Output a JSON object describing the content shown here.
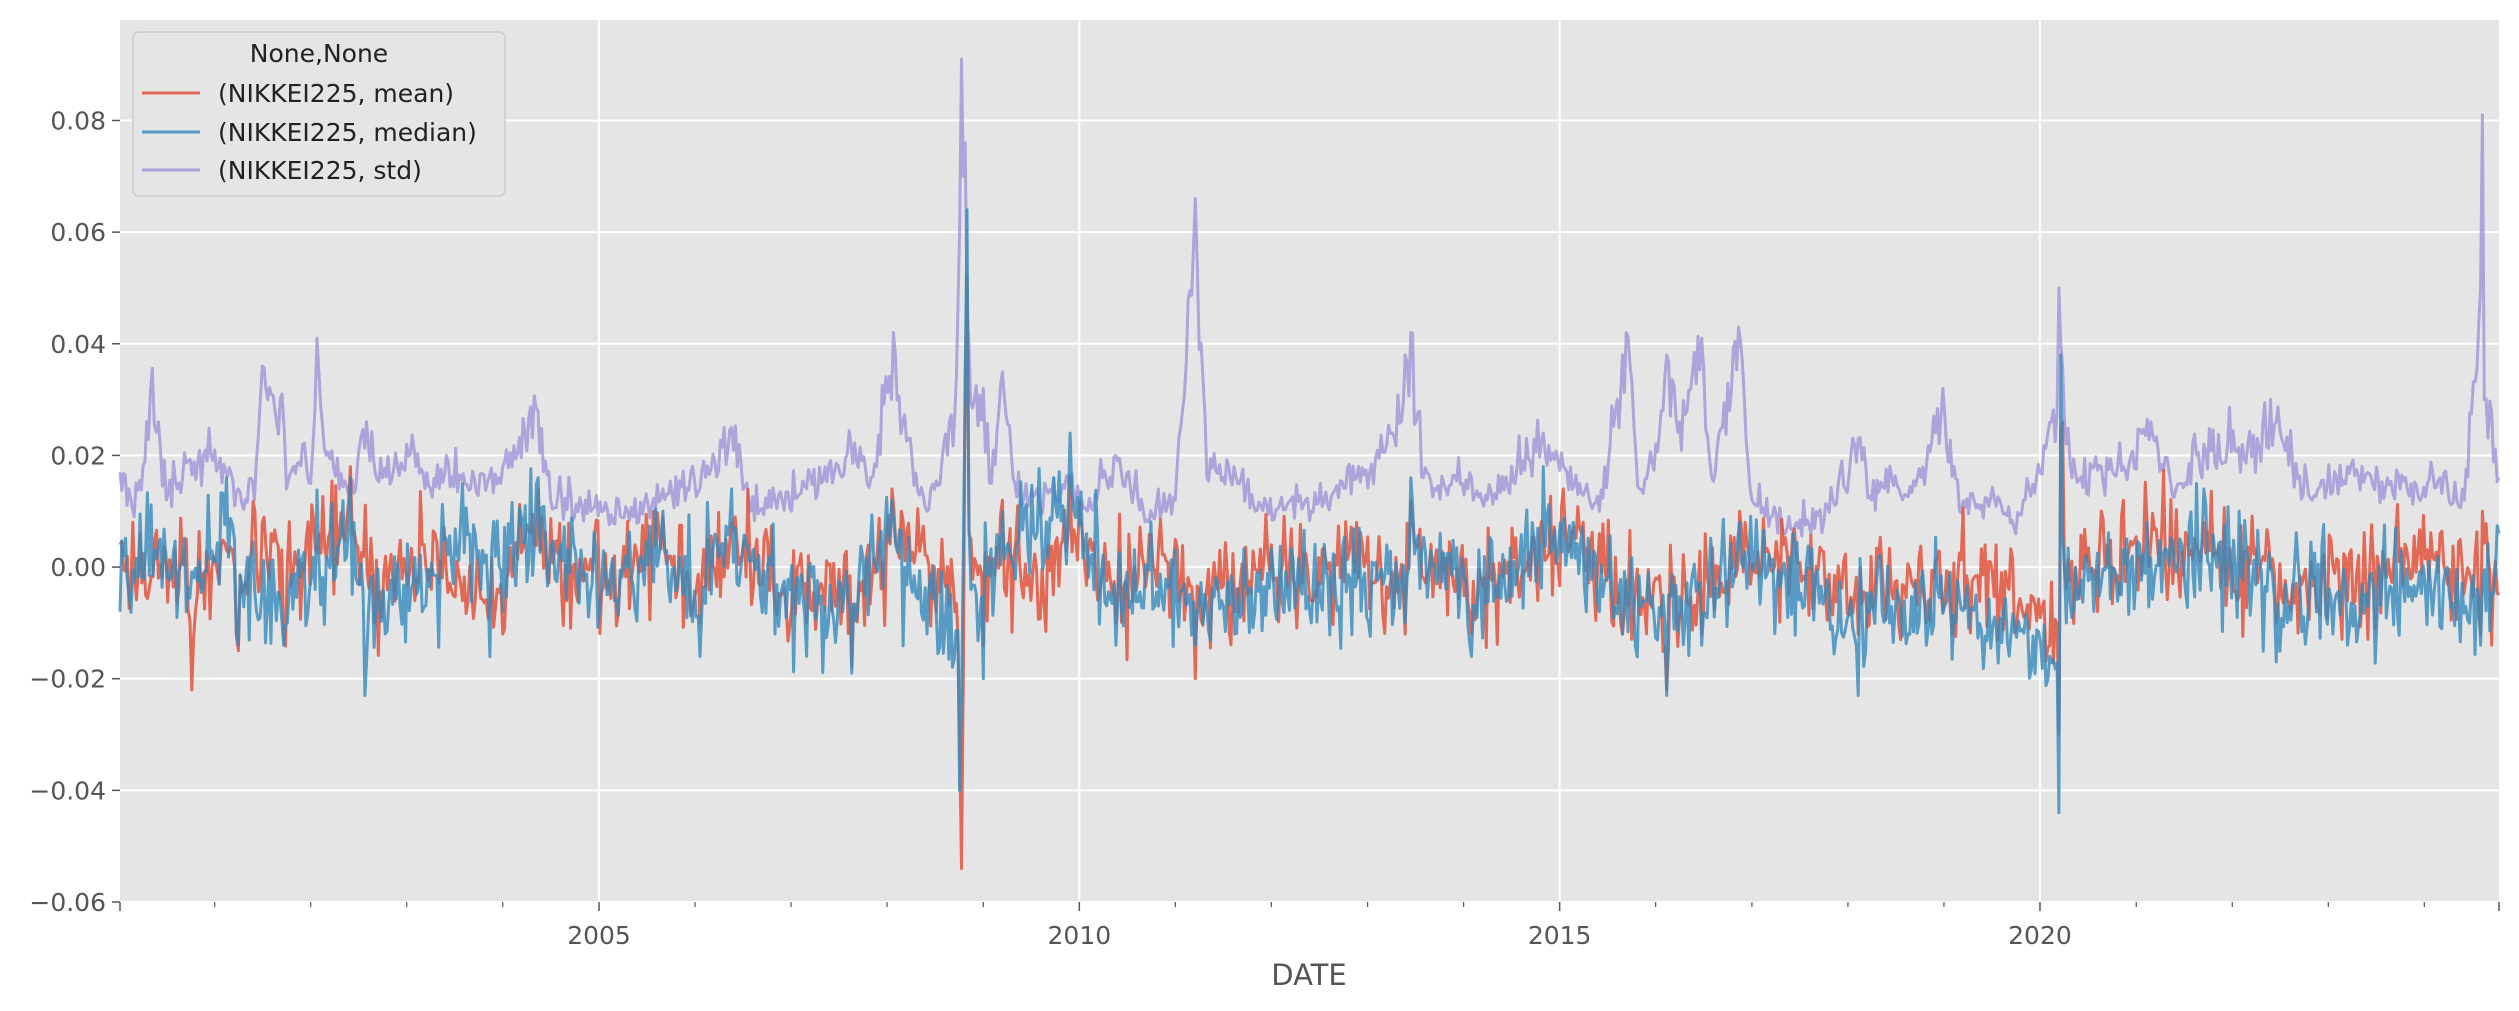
{
  "chart_data": {
    "type": "line",
    "title": "",
    "xlabel": "DATE",
    "ylabel": "",
    "xlim": [
      "2000-01-07",
      "2024-10-11"
    ],
    "ylim": [
      -0.06,
      0.098
    ],
    "grid": true,
    "legend": {
      "title": "None,None",
      "position": "top-left"
    },
    "x_tick_labels": [
      "2005",
      "2010",
      "2015",
      "2020"
    ],
    "y_tick_labels": [
      "−0.06",
      "−0.04",
      "−0.02",
      "0.00",
      "0.02",
      "0.04",
      "0.06",
      "0.08"
    ],
    "colors": {
      "background": "#e5e5e5",
      "grid": "#ffffff",
      "mean": "#e24a33",
      "median": "#348abd",
      "std": "#988ed5"
    },
    "series": [
      {
        "name": "(NIKKEI225, mean)",
        "key": "mean",
        "points": [
          [
            "2000-01-07",
            0.004
          ],
          [
            "2000-06-01",
            -0.002
          ],
          [
            "2000-09-15",
            0.005
          ],
          [
            "2000-10-06",
            -0.022
          ],
          [
            "2001-02-15",
            0.003
          ],
          [
            "2001-04-01",
            -0.015
          ],
          [
            "2001-07-01",
            0.008
          ],
          [
            "2001-09-20",
            -0.012
          ],
          [
            "2001-12-15",
            0.005
          ],
          [
            "2002-06-01",
            0.018
          ],
          [
            "2002-09-01",
            -0.01
          ],
          [
            "2003-03-01",
            0.004
          ],
          [
            "2003-08-01",
            -0.006
          ],
          [
            "2004-01-01",
            -0.012
          ],
          [
            "2004-05-15",
            0.014
          ],
          [
            "2004-09-01",
            -0.006
          ],
          [
            "2005-03-01",
            0.002
          ],
          [
            "2005-09-01",
            0.009
          ],
          [
            "2006-01-20",
            -0.01
          ],
          [
            "2006-05-20",
            0.008
          ],
          [
            "2006-11-01",
            -0.007
          ],
          [
            "2007-03-01",
            -0.01
          ],
          [
            "2007-08-20",
            -0.018
          ],
          [
            "2008-01-20",
            0.014
          ],
          [
            "2008-06-01",
            0.002
          ],
          [
            "2008-09-15",
            -0.008
          ],
          [
            "2008-10-03",
            -0.03
          ],
          [
            "2008-10-10",
            -0.054
          ],
          [
            "2008-10-17",
            -0.02
          ],
          [
            "2008-10-24",
            0.035
          ],
          [
            "2008-10-31",
            0.052
          ],
          [
            "2008-11-15",
            0.005
          ],
          [
            "2009-01-01",
            -0.014
          ],
          [
            "2009-03-15",
            0.012
          ],
          [
            "2009-07-01",
            -0.006
          ],
          [
            "2009-11-27",
            0.016
          ],
          [
            "2010-05-20",
            -0.01
          ],
          [
            "2011-01-01",
            0.005
          ],
          [
            "2011-03-18",
            -0.02
          ],
          [
            "2011-08-15",
            -0.008
          ],
          [
            "2012-01-01",
            0.004
          ],
          [
            "2012-06-01",
            -0.006
          ],
          [
            "2012-11-20",
            0.008
          ],
          [
            "2013-05-24",
            -0.012
          ],
          [
            "2013-06-14",
            0.012
          ],
          [
            "2014-01-31",
            -0.012
          ],
          [
            "2014-10-31",
            0.006
          ],
          [
            "2015-01-15",
            0.014
          ],
          [
            "2015-06-01",
            0.006
          ],
          [
            "2015-08-28",
            -0.012
          ],
          [
            "2016-02-12",
            -0.022
          ],
          [
            "2016-06-24",
            -0.012
          ],
          [
            "2016-11-15",
            0.01
          ],
          [
            "2017-05-01",
            0.004
          ],
          [
            "2018-02-09",
            -0.012
          ],
          [
            "2018-10-26",
            -0.01
          ],
          [
            "2018-12-28",
            -0.008
          ],
          [
            "2019-08-01",
            -0.006
          ],
          [
            "2020-03-13",
            -0.03
          ],
          [
            "2020-03-20",
            0.024
          ],
          [
            "2020-03-27",
            0.026
          ],
          [
            "2020-04-10",
            -0.004
          ],
          [
            "2020-11-13",
            0.012
          ],
          [
            "2021-09-15",
            0.008
          ],
          [
            "2022-06-17",
            -0.01
          ],
          [
            "2023-03-15",
            -0.006
          ],
          [
            "2024-03-01",
            0.006
          ],
          [
            "2024-08-02",
            -0.012
          ],
          [
            "2024-08-09",
            0.01
          ],
          [
            "2024-10-11",
            -0.005
          ]
        ]
      },
      {
        "name": "(NIKKEI225, median)",
        "key": "median",
        "points": [
          [
            "2000-01-07",
            -0.008
          ],
          [
            "2000-06-01",
            0.004
          ],
          [
            "2000-09-15",
            -0.008
          ],
          [
            "2001-02-15",
            0.016
          ],
          [
            "2001-04-01",
            -0.014
          ],
          [
            "2001-09-20",
            -0.014
          ],
          [
            "2002-06-01",
            0.016
          ],
          [
            "2002-07-26",
            -0.023
          ],
          [
            "2003-03-01",
            -0.008
          ],
          [
            "2003-08-01",
            0.015
          ],
          [
            "2004-01-01",
            -0.008
          ],
          [
            "2004-05-15",
            0.016
          ],
          [
            "2005-03-01",
            -0.006
          ],
          [
            "2005-09-01",
            0.01
          ],
          [
            "2006-01-20",
            -0.016
          ],
          [
            "2006-05-20",
            0.014
          ],
          [
            "2006-11-01",
            -0.012
          ],
          [
            "2007-03-01",
            -0.016
          ],
          [
            "2007-08-20",
            -0.019
          ],
          [
            "2008-01-20",
            0.012
          ],
          [
            "2008-06-01",
            -0.012
          ],
          [
            "2008-10-03",
            -0.04
          ],
          [
            "2008-10-10",
            -0.024
          ],
          [
            "2008-10-24",
            0.032
          ],
          [
            "2008-10-31",
            0.064
          ],
          [
            "2008-11-15",
            -0.004
          ],
          [
            "2009-01-01",
            -0.02
          ],
          [
            "2009-03-15",
            0.01
          ],
          [
            "2009-11-27",
            0.024
          ],
          [
            "2010-05-20",
            -0.014
          ],
          [
            "2011-03-18",
            -0.014
          ],
          [
            "2011-08-15",
            -0.012
          ],
          [
            "2012-06-01",
            -0.01
          ],
          [
            "2013-05-24",
            -0.01
          ],
          [
            "2013-06-14",
            0.016
          ],
          [
            "2014-01-31",
            -0.016
          ],
          [
            "2014-10-31",
            0.018
          ],
          [
            "2015-06-01",
            -0.008
          ],
          [
            "2015-08-28",
            -0.012
          ],
          [
            "2016-02-12",
            -0.023
          ],
          [
            "2016-06-24",
            -0.014
          ],
          [
            "2016-11-15",
            0.008
          ],
          [
            "2018-02-09",
            -0.023
          ],
          [
            "2018-10-26",
            -0.014
          ],
          [
            "2020-03-13",
            -0.044
          ],
          [
            "2020-03-20",
            0.038
          ],
          [
            "2020-04-10",
            -0.01
          ],
          [
            "2021-09-15",
            0.014
          ],
          [
            "2022-06-17",
            -0.017
          ],
          [
            "2023-03-15",
            -0.014
          ],
          [
            "2024-08-02",
            -0.014
          ],
          [
            "2024-10-11",
            0.006
          ]
        ]
      },
      {
        "name": "(NIKKEI225, std)",
        "key": "std",
        "points": [
          [
            "2000-01-07",
            0.017
          ],
          [
            "2000-03-01",
            0.009
          ],
          [
            "2000-05-01",
            0.031
          ],
          [
            "2000-06-01",
            0.026
          ],
          [
            "2000-07-01",
            0.012
          ],
          [
            "2000-09-01",
            0.016
          ],
          [
            "2001-01-01",
            0.021
          ],
          [
            "2001-04-01",
            0.014
          ],
          [
            "2001-06-01",
            0.012
          ],
          [
            "2001-07-01",
            0.036
          ],
          [
            "2001-09-14",
            0.031
          ],
          [
            "2001-10-01",
            0.014
          ],
          [
            "2001-12-01",
            0.022
          ],
          [
            "2002-01-01",
            0.015
          ],
          [
            "2002-01-25",
            0.041
          ],
          [
            "2002-03-01",
            0.02
          ],
          [
            "2002-06-01",
            0.014
          ],
          [
            "2002-08-01",
            0.026
          ],
          [
            "2002-10-01",
            0.016
          ],
          [
            "2003-01-01",
            0.022
          ],
          [
            "2003-04-01",
            0.014
          ],
          [
            "2003-06-01",
            0.02
          ],
          [
            "2003-09-01",
            0.014
          ],
          [
            "2004-01-01",
            0.018
          ],
          [
            "2004-05-14",
            0.028
          ],
          [
            "2004-07-01",
            0.012
          ],
          [
            "2004-12-01",
            0.01
          ],
          [
            "2005-06-01",
            0.008
          ],
          [
            "2005-09-01",
            0.014
          ],
          [
            "2006-01-20",
            0.014
          ],
          [
            "2006-05-20",
            0.025
          ],
          [
            "2006-08-01",
            0.01
          ],
          [
            "2007-03-01",
            0.014
          ],
          [
            "2007-08-17",
            0.022
          ],
          [
            "2007-11-01",
            0.016
          ],
          [
            "2008-01-25",
            0.042
          ],
          [
            "2008-03-01",
            0.026
          ],
          [
            "2008-06-01",
            0.01
          ],
          [
            "2008-09-15",
            0.028
          ],
          [
            "2008-10-03",
            0.06
          ],
          [
            "2008-10-10",
            0.091
          ],
          [
            "2008-10-17",
            0.07
          ],
          [
            "2008-10-24",
            0.076
          ],
          [
            "2008-11-07",
            0.04
          ],
          [
            "2008-11-28",
            0.03
          ],
          [
            "2009-01-01",
            0.032
          ],
          [
            "2009-02-01",
            0.015
          ],
          [
            "2009-03-15",
            0.035
          ],
          [
            "2009-05-01",
            0.015
          ],
          [
            "2009-08-01",
            0.012
          ],
          [
            "2009-11-27",
            0.016
          ],
          [
            "2010-02-01",
            0.01
          ],
          [
            "2010-05-20",
            0.02
          ],
          [
            "2010-09-01",
            0.01
          ],
          [
            "2011-01-01",
            0.012
          ],
          [
            "2011-03-18",
            0.066
          ],
          [
            "2011-05-01",
            0.016
          ],
          [
            "2011-08-12",
            0.018
          ],
          [
            "2011-11-01",
            0.01
          ],
          [
            "2012-06-01",
            0.01
          ],
          [
            "2012-11-20",
            0.016
          ],
          [
            "2013-04-05",
            0.024
          ],
          [
            "2013-05-24",
            0.038
          ],
          [
            "2013-06-14",
            0.042
          ],
          [
            "2013-08-01",
            0.016
          ],
          [
            "2014-01-31",
            0.016
          ],
          [
            "2014-04-01",
            0.012
          ],
          [
            "2014-10-31",
            0.024
          ],
          [
            "2015-01-15",
            0.018
          ],
          [
            "2015-06-01",
            0.01
          ],
          [
            "2015-08-28",
            0.038
          ],
          [
            "2015-09-11",
            0.042
          ],
          [
            "2015-11-01",
            0.014
          ],
          [
            "2016-01-15",
            0.024
          ],
          [
            "2016-02-12",
            0.038
          ],
          [
            "2016-04-01",
            0.026
          ],
          [
            "2016-06-24",
            0.041
          ],
          [
            "2016-08-01",
            0.016
          ],
          [
            "2016-11-11",
            0.043
          ],
          [
            "2017-01-01",
            0.012
          ],
          [
            "2017-05-01",
            0.006
          ],
          [
            "2017-10-01",
            0.008
          ],
          [
            "2018-02-09",
            0.023
          ],
          [
            "2018-04-01",
            0.012
          ],
          [
            "2018-10-26",
            0.018
          ],
          [
            "2018-12-28",
            0.032
          ],
          [
            "2019-03-01",
            0.01
          ],
          [
            "2019-08-01",
            0.012
          ],
          [
            "2019-10-01",
            0.006
          ],
          [
            "2020-03-06",
            0.028
          ],
          [
            "2020-03-13",
            0.05
          ],
          [
            "2020-03-20",
            0.04
          ],
          [
            "2020-03-27",
            0.036
          ],
          [
            "2020-05-01",
            0.016
          ],
          [
            "2020-11-13",
            0.018
          ],
          [
            "2021-02-26",
            0.026
          ],
          [
            "2021-06-01",
            0.014
          ],
          [
            "2021-09-15",
            0.022
          ],
          [
            "2022-03-01",
            0.022
          ],
          [
            "2022-06-17",
            0.026
          ],
          [
            "2022-11-01",
            0.012
          ],
          [
            "2023-03-15",
            0.018
          ],
          [
            "2023-10-01",
            0.014
          ],
          [
            "2024-03-01",
            0.016
          ],
          [
            "2024-06-01",
            0.012
          ],
          [
            "2024-08-02",
            0.05
          ],
          [
            "2024-08-09",
            0.081
          ],
          [
            "2024-08-16",
            0.03
          ],
          [
            "2024-09-13",
            0.028
          ],
          [
            "2024-10-11",
            0.016
          ]
        ]
      }
    ]
  }
}
